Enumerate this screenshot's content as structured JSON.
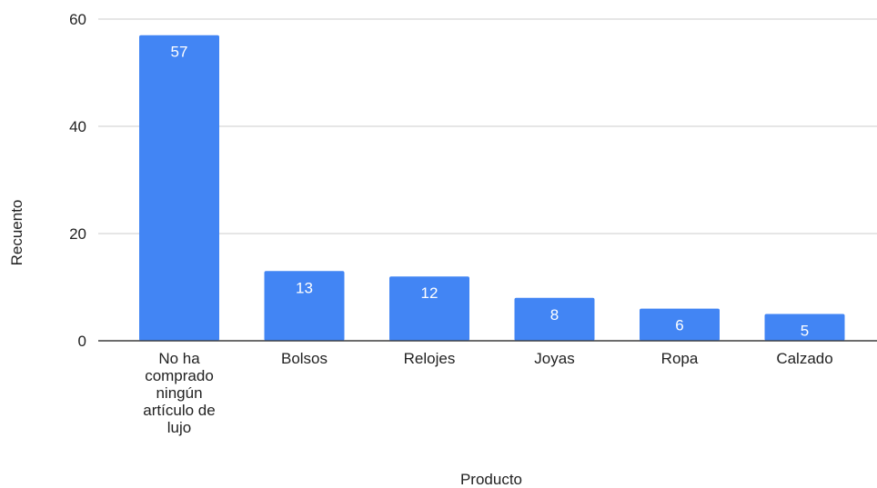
{
  "chart_data": {
    "type": "bar",
    "categories": [
      "No ha comprado ningún artículo de lujo",
      "Bolsos",
      "Relojes",
      "Joyas",
      "Ropa",
      "Calzado"
    ],
    "category_lines": [
      [
        "No ha",
        "comprado",
        "ningún",
        "artículo de",
        "lujo"
      ],
      [
        "Bolsos"
      ],
      [
        "Relojes"
      ],
      [
        "Joyas"
      ],
      [
        "Ropa"
      ],
      [
        "Calzado"
      ]
    ],
    "values": [
      57,
      13,
      12,
      8,
      6,
      5
    ],
    "xlabel": "Producto",
    "ylabel": "Recuento",
    "ylim": [
      0,
      60
    ],
    "yticks": [
      0,
      20,
      40,
      60
    ],
    "grid": true,
    "data_labels": true,
    "bar_color": "#4285f4"
  }
}
